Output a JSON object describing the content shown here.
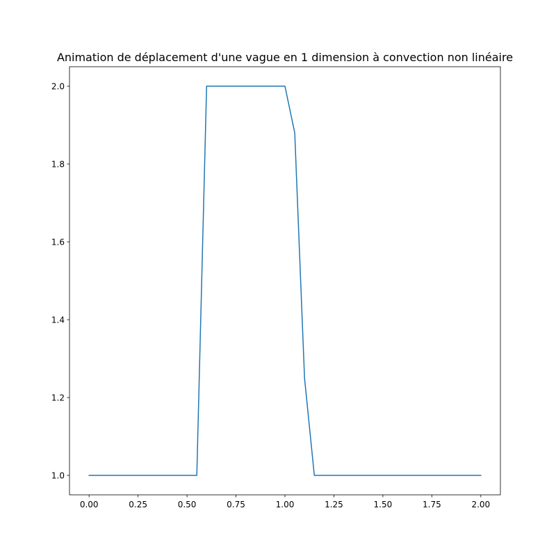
{
  "chart_data": {
    "type": "line",
    "title": "Animation de déplacement d'une vague en 1 dimension à convection non linéaire",
    "xlabel": "",
    "ylabel": "",
    "xlim": [
      -0.1,
      2.1
    ],
    "ylim": [
      0.95,
      2.05
    ],
    "grid": false,
    "legend": "none",
    "x_ticks": [
      0.0,
      0.25,
      0.5,
      0.75,
      1.0,
      1.25,
      1.5,
      1.75,
      2.0
    ],
    "x_tick_labels": [
      "0.00",
      "0.25",
      "0.50",
      "0.75",
      "1.00",
      "1.25",
      "1.50",
      "1.75",
      "2.00"
    ],
    "y_ticks": [
      1.0,
      1.2,
      1.4,
      1.6,
      1.8,
      2.0
    ],
    "y_tick_labels": [
      "1.0",
      "1.2",
      "1.4",
      "1.6",
      "1.8",
      "2.0"
    ],
    "series": [
      {
        "color": "#1f77b4",
        "x": [
          0.0,
          0.05,
          0.1,
          0.15,
          0.2,
          0.25,
          0.3,
          0.35,
          0.4,
          0.45,
          0.5,
          0.55,
          0.6,
          0.65,
          0.7,
          0.75,
          0.8,
          0.85,
          0.9,
          0.95,
          1.0,
          1.05,
          1.1,
          1.15,
          1.2,
          1.25,
          1.3,
          1.35,
          1.4,
          1.45,
          1.5,
          1.55,
          1.6,
          1.65,
          1.7,
          1.75,
          1.8,
          1.85,
          1.9,
          1.95,
          2.0
        ],
        "y": [
          1.0,
          1.0,
          1.0,
          1.0,
          1.0,
          1.0,
          1.0,
          1.0,
          1.0,
          1.0,
          1.0,
          1.0,
          2.0,
          2.0,
          2.0,
          2.0,
          2.0,
          2.0,
          2.0,
          2.0,
          2.0,
          1.88,
          1.25,
          1.0,
          1.0,
          1.0,
          1.0,
          1.0,
          1.0,
          1.0,
          1.0,
          1.0,
          1.0,
          1.0,
          1.0,
          1.0,
          1.0,
          1.0,
          1.0,
          1.0,
          1.0
        ]
      }
    ]
  }
}
